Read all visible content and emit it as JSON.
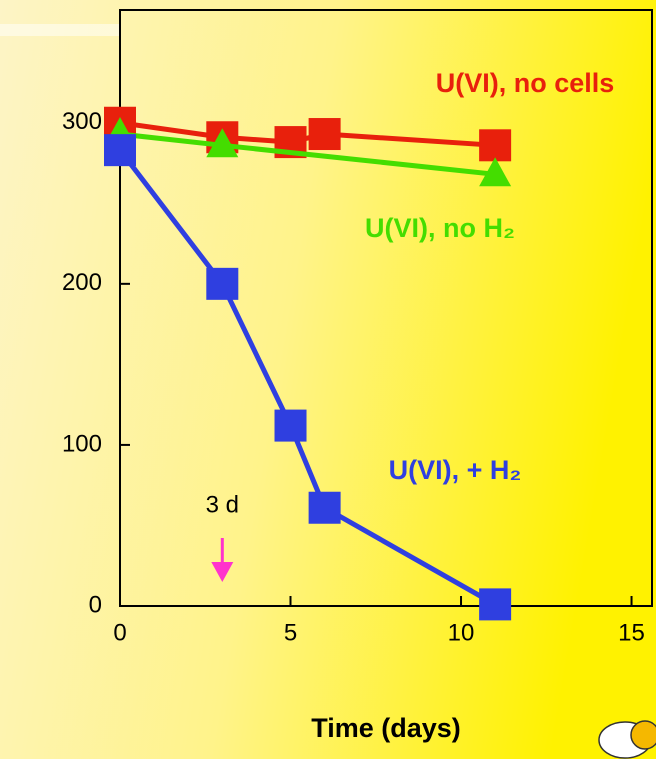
{
  "chart_data": {
    "type": "line",
    "x_label": "Time (days)",
    "xlim": [
      0,
      15.6
    ],
    "xticks": [
      0,
      5,
      10,
      15
    ],
    "ylim": [
      0,
      370
    ],
    "yticks": [
      0,
      100,
      200,
      300
    ],
    "series": [
      {
        "name": "U(VI), no cells",
        "color": "#e8200c",
        "marker": "square",
        "x": [
          0,
          3,
          5,
          6,
          11
        ],
        "values": [
          300,
          291,
          288,
          293,
          286
        ]
      },
      {
        "name": "U(VI), no H₂",
        "color": "#44dd00",
        "marker": "triangle",
        "x": [
          0,
          3,
          11
        ],
        "values": [
          293,
          286,
          268
        ]
      },
      {
        "name": "U(VI), + H₂",
        "color": "#2f3fe0",
        "marker": "square",
        "x": [
          0,
          3,
          5,
          6,
          11
        ],
        "values": [
          283,
          200,
          112,
          61,
          1
        ]
      }
    ],
    "annotation": {
      "text": "3 d",
      "x": 3,
      "color": "#ff33cc"
    }
  }
}
